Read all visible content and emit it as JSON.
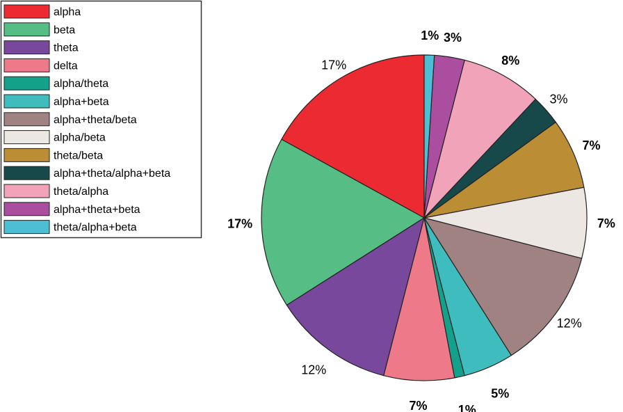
{
  "chart_data": {
    "type": "pie",
    "title": "",
    "legend_placement": "top-left",
    "categories": [
      "alpha",
      "beta",
      "theta",
      "delta",
      "alpha/theta",
      "alpha+beta",
      "alpha+theta/beta",
      "alpha/beta",
      "theta/beta",
      "alpha+theta/alpha+beta",
      "theta/alpha",
      "alpha+theta+beta",
      "theta/alpha+beta"
    ],
    "values": [
      17,
      17,
      12,
      7,
      1,
      5,
      12,
      7,
      7,
      3,
      8,
      3,
      1
    ],
    "labels": [
      "17%",
      "17%",
      "12%",
      "7%",
      "1%",
      "5%",
      "12%",
      "7%",
      "7%",
      "3%",
      "8%",
      "3%",
      "1%"
    ],
    "colors": [
      "#ec2a31",
      "#56bd84",
      "#77489b",
      "#ee7989",
      "#14a18c",
      "#3fbcbd",
      "#a08282",
      "#ede7e3",
      "#bb8e36",
      "#17484a",
      "#f1a4b9",
      "#ab4ea0",
      "#4cbfd4"
    ],
    "order": "counterclockwise from 12 o'clock"
  }
}
